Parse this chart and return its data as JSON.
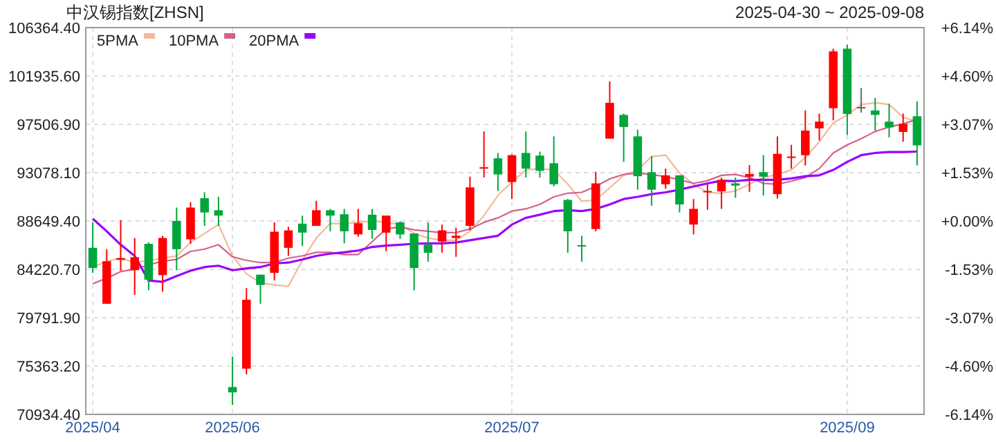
{
  "chart_data": {
    "type": "candlestick",
    "title": "中汉锡指数[ZHSN]",
    "subtitle": "2025-04-30 ~ 2025-09-08",
    "categories": [
      "2025/04",
      null,
      null,
      null,
      null,
      null,
      null,
      null,
      null,
      null,
      "2025/06",
      null,
      null,
      null,
      null,
      null,
      null,
      null,
      null,
      null,
      null,
      null,
      null,
      null,
      null,
      null,
      null,
      null,
      null,
      null,
      "2025/07",
      null,
      null,
      null,
      null,
      null,
      null,
      null,
      null,
      null,
      null,
      null,
      null,
      null,
      null,
      null,
      null,
      null,
      null,
      null,
      null,
      null,
      null,
      null,
      "2025/09",
      null,
      null,
      null,
      null,
      null
    ],
    "ohlc": [
      [
        86192,
        88529,
        83896,
        84347
      ],
      [
        81067,
        86069,
        81067,
        84962
      ],
      [
        85085,
        88734,
        84101,
        85249
      ],
      [
        84142,
        87094,
        81887,
        85331
      ],
      [
        86561,
        86684,
        82297,
        83281
      ],
      [
        83691,
        87299,
        82174,
        87094
      ],
      [
        88652,
        89882,
        84142,
        86069
      ],
      [
        86971,
        90374,
        86561,
        89882
      ],
      [
        90743,
        91276,
        88201,
        89431
      ],
      [
        89636,
        90866,
        88201,
        89144
      ],
      [
        73441,
        76229,
        71801,
        72949
      ],
      [
        75122,
        82502,
        74589,
        81436
      ],
      [
        83732,
        83732,
        81067,
        82789
      ],
      [
        83896,
        88529,
        83199,
        87668
      ],
      [
        86192,
        88119,
        85454,
        87791
      ],
      [
        88406,
        89144,
        86356,
        87586
      ],
      [
        88201,
        90497,
        88201,
        89636
      ],
      [
        89636,
        89759,
        87709,
        89144
      ],
      [
        89267,
        89759,
        86602,
        87709
      ],
      [
        87422,
        89759,
        87217,
        88447
      ],
      [
        89226,
        89759,
        87012,
        87832
      ],
      [
        87586,
        89144,
        85864,
        89144
      ],
      [
        88529,
        88611,
        87012,
        87422
      ],
      [
        87504,
        87504,
        82297,
        84347
      ],
      [
        86479,
        88529,
        84921,
        85741
      ],
      [
        86766,
        88324,
        85741,
        87791
      ],
      [
        87094,
        88037,
        85372,
        87299
      ],
      [
        88201,
        92711,
        87791,
        91727
      ],
      [
        93449,
        96852,
        92629,
        93572
      ],
      [
        94392,
        94884,
        91399,
        92916
      ],
      [
        92219,
        94761,
        90661,
        94679
      ],
      [
        94884,
        96852,
        92629,
        93449
      ],
      [
        94638,
        95007,
        92629,
        93244
      ],
      [
        93941,
        96401,
        91809,
        92014
      ],
      [
        90579,
        90661,
        85741,
        87709
      ],
      [
        86438,
        87299,
        84921,
        86356
      ],
      [
        87914,
        93162,
        87709,
        92096
      ],
      [
        96196,
        101444,
        96196,
        99476
      ],
      [
        98369,
        98492,
        94064,
        97262
      ],
      [
        96401,
        97016,
        91522,
        92752
      ],
      [
        93121,
        94597,
        90046,
        91522
      ],
      [
        92014,
        93449,
        91604,
        92834
      ],
      [
        92834,
        92834,
        89431,
        90169
      ],
      [
        88324,
        90661,
        87422,
        89759
      ],
      [
        91276,
        92137,
        89677,
        91399
      ],
      [
        91358,
        92629,
        89759,
        92424
      ],
      [
        92096,
        92629,
        90784,
        91891
      ],
      [
        92711,
        93777,
        91317,
        92957
      ],
      [
        93121,
        94679,
        90989,
        92711
      ],
      [
        91112,
        96401,
        90702,
        94802
      ],
      [
        94474,
        95622,
        93449,
        94556
      ],
      [
        94679,
        98779,
        93736,
        96934
      ],
      [
        97139,
        98492,
        96032,
        97754
      ],
      [
        98984,
        104437,
        97877,
        104191
      ],
      [
        104437,
        104806,
        96524,
        98451
      ],
      [
        99087,
        100829,
        98574,
        99087
      ],
      [
        98779,
        99927,
        96934,
        98369
      ],
      [
        97754,
        99394,
        96319,
        97221
      ],
      [
        96811,
        98492,
        95909,
        97549
      ],
      [
        98246,
        99599,
        93736,
        95581
      ]
    ],
    "colors": [
      "#00a63c",
      "#ff0000",
      "#ff0000",
      "#ff0000",
      "#00a63c",
      "#ff0000",
      "#00a63c",
      "#ff0000",
      "#00a63c",
      "#00a63c",
      "#00a63c",
      "#ff0000",
      "#00a63c",
      "#ff0000",
      "#ff0000",
      "#00a63c",
      "#ff0000",
      "#00a63c",
      "#00a63c",
      "#ff0000",
      "#00a63c",
      "#ff0000",
      "#00a63c",
      "#00a63c",
      "#00a63c",
      "#ff0000",
      "#ff0000",
      "#ff0000",
      "#ff0000",
      "#00a63c",
      "#ff0000",
      "#00a63c",
      "#00a63c",
      "#00a63c",
      "#00a63c",
      "#00a63c",
      "#ff0000",
      "#ff0000",
      "#00a63c",
      "#00a63c",
      "#00a63c",
      "#ff0000",
      "#00a63c",
      "#ff0000",
      "#ff0000",
      "#ff0000",
      "#00a63c",
      "#ff0000",
      "#00a63c",
      "#ff0000",
      "#ff0000",
      "#ff0000",
      "#ff0000",
      "#ff0000",
      "#00a63c",
      "#666666",
      "#00a63c",
      "#00a63c",
      "#ff0000",
      "#00a63c"
    ],
    "series": [
      {
        "name": "5PMA",
        "type": "line",
        "color": "#f4b896",
        "values": [
          84429,
          84962,
          85249,
          84839,
          85044,
          85249,
          85454,
          86684,
          87504,
          88324,
          85454,
          83814,
          82994,
          82789,
          82666,
          85044,
          87094,
          88406,
          88406,
          88529,
          88652,
          88529,
          88324,
          87504,
          87094,
          86889,
          86889,
          87709,
          89144,
          90989,
          92219,
          93326,
          93449,
          93326,
          92014,
          90456,
          90579,
          91686,
          92834,
          93326,
          94556,
          94679,
          93039,
          92014,
          91276,
          91194,
          91399,
          92014,
          92629,
          92916,
          93326,
          94474,
          95909,
          97631,
          98369,
          99312,
          99476,
          99312,
          98164,
          97754
        ]
      },
      {
        "name": "10PMA",
        "type": "line",
        "color": "#d6608a",
        "values": [
          82912,
          83404,
          84019,
          84224,
          84634,
          84962,
          85126,
          85864,
          86069,
          86479,
          85372,
          85044,
          84839,
          84839,
          85249,
          85454,
          85782,
          85782,
          85577,
          85577,
          86766,
          87914,
          88119,
          87832,
          87709,
          87586,
          87586,
          87914,
          88529,
          88939,
          89554,
          89759,
          90169,
          90866,
          91194,
          91276,
          91809,
          92506,
          92916,
          93039,
          92916,
          92711,
          92424,
          92096,
          92342,
          92834,
          92916,
          92629,
          92096,
          92014,
          92301,
          92629,
          93449,
          94884,
          95622,
          96196,
          96852,
          97262,
          97549,
          97959
        ]
      },
      {
        "name": "20PMA",
        "type": "line",
        "color": "#9900ff",
        "values": [
          88857,
          87709,
          86479,
          85454,
          83199,
          83076,
          83609,
          84101,
          84429,
          84552,
          84142,
          84306,
          84429,
          84757,
          84839,
          85126,
          85454,
          85659,
          85782,
          85946,
          86274,
          86397,
          86479,
          86561,
          86602,
          86602,
          86684,
          86889,
          87094,
          87299,
          88324,
          88939,
          89226,
          89554,
          89636,
          89554,
          89759,
          90169,
          90661,
          90866,
          91112,
          91276,
          91522,
          91809,
          92096,
          92342,
          92301,
          92424,
          92424,
          92424,
          92547,
          92752,
          92834,
          93326,
          94064,
          94679,
          94884,
          94966,
          94966,
          95007
        ]
      }
    ],
    "ylim": [
      70934.4,
      106364.4
    ],
    "yticks": [
      {
        "value": 70934.4,
        "label": "70934.40"
      },
      {
        "value": 75363.2,
        "label": "75363.20"
      },
      {
        "value": 79791.9,
        "label": "79791.90"
      },
      {
        "value": 84220.7,
        "label": "84220.70"
      },
      {
        "value": 88649.4,
        "label": "88649.40"
      },
      {
        "value": 93078.1,
        "label": "93078.10"
      },
      {
        "value": 97506.9,
        "label": "97506.90"
      },
      {
        "value": 101935.6,
        "label": "101935.60"
      },
      {
        "value": 106364.4,
        "label": "106364.40"
      }
    ],
    "y2lim": [
      -6.14,
      6.14
    ],
    "y2ticks": [
      {
        "value": -6.14,
        "label": "-6.14%"
      },
      {
        "value": -4.6,
        "label": "-4.60%"
      },
      {
        "value": -3.07,
        "label": "-3.07%"
      },
      {
        "value": -1.53,
        "label": "-1.53%"
      },
      {
        "value": 0,
        "label": "+0.00%"
      },
      {
        "value": 1.53,
        "label": "+1.53%"
      },
      {
        "value": 3.07,
        "label": "+3.07%"
      },
      {
        "value": 4.6,
        "label": "+4.60%"
      },
      {
        "value": 6.14,
        "label": "+6.14%"
      }
    ],
    "grid": true,
    "legend": "top left"
  }
}
